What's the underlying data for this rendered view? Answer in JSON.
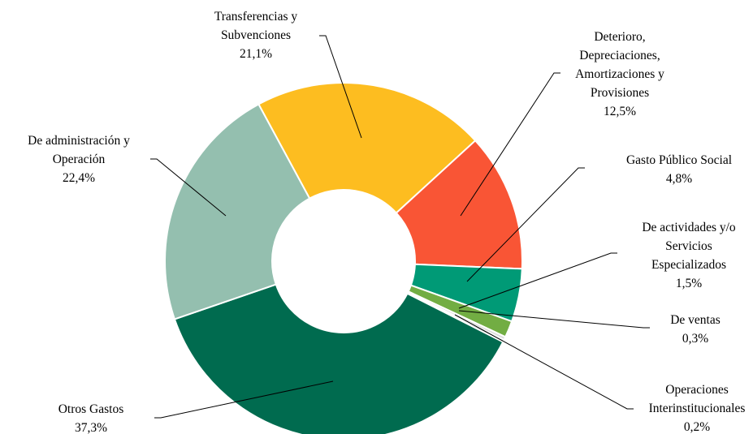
{
  "chart_data": {
    "type": "donut",
    "categories": [
      "Transferencias y Subvenciones",
      "Deterioro, Depreciaciones, Amortizaciones y Provisiones",
      "Gasto Público Social",
      "De actividades y/o Servicios Especializados",
      "De ventas",
      "Operaciones Interinstitucionales",
      "Otros Gastos",
      "De administración y Operación"
    ],
    "values": [
      21.1,
      12.5,
      4.8,
      1.5,
      0.3,
      0.2,
      37.3,
      22.4
    ],
    "value_labels": [
      "21,1%",
      "12,5%",
      "4,8%",
      "1,5%",
      "0,3%",
      "0,2%",
      "37,3%",
      "22,4%"
    ],
    "colors": [
      "#FDBD20",
      "#F95535",
      "#009A76",
      "#72AD43",
      "#DCDCDC",
      "#3F5F55",
      "#006B4F",
      "#94BFAF"
    ]
  }
}
